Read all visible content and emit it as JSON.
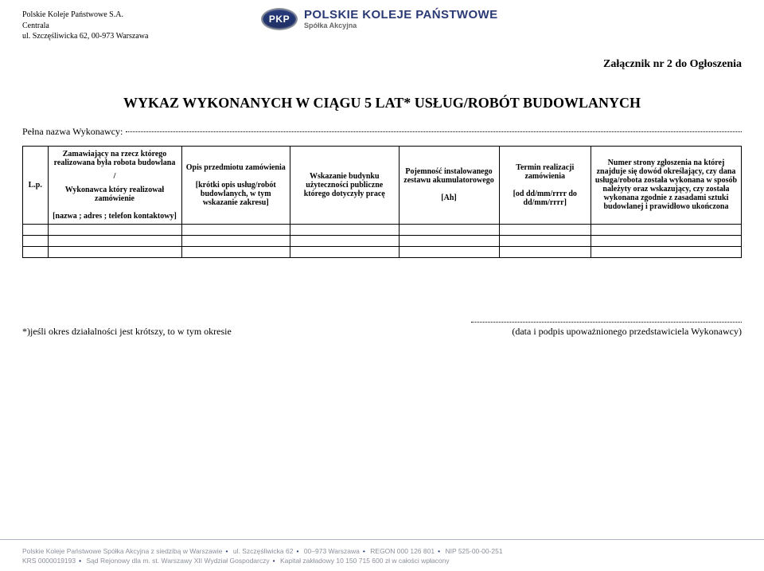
{
  "header": {
    "company_line1": "Polskie Koleje Państwowe S.A.",
    "company_line2": "Centrala",
    "company_line3": "ul. Szczęśliwicka 62, 00-973 Warszawa",
    "logo_abbr": "PKP",
    "logo_name": "POLSKIE KOLEJE PAŃSTWOWE",
    "logo_sub": "Spółka Akcyjna",
    "attachment": "Załącznik nr 2 do Ogłoszenia"
  },
  "title": "WYKAZ WYKONANYCH W CIĄGU 5 LAT* USŁUG/ROBÓT BUDOWLANYCH",
  "contractor_label": "Pełna nazwa Wykonawcy:",
  "columns": {
    "c0": "L.p.",
    "c1_a": "Zamawiający na rzecz którego realizowana była robota budowlana",
    "c1_sep": "/",
    "c1_b": "Wykonawca który realizował zamówienie",
    "c1_c": "[nazwa ; adres ; telefon kontaktowy]",
    "c2_a": "Opis przedmiotu zamówienia",
    "c2_b": "[krótki opis usług/robót budowlanych, w tym wskazanie zakresu]",
    "c3": "Wskazanie budynku użyteczności publiczne którego dotyczyły pracę",
    "c4_a": "Pojemność instalowanego zestawu akumulatorowego",
    "c4_b": "[Ah]",
    "c5_a": "Termin realizacji zamówienia",
    "c5_b": "[od dd/mm/rrrr do dd/mm/rrrr]",
    "c6": "Numer strony zgłoszenia na której znajduje się dowód określający, czy dana usługa/robota została wykonana w sposób należyty oraz wskazujący, czy została wykonana zgodnie z zasadami sztuki budowlanej i prawidłowo ukończona"
  },
  "col_widths": [
    "30px",
    "160px",
    "130px",
    "130px",
    "120px",
    "110px",
    "180px"
  ],
  "empty_rows": 3,
  "footnote": "*)jeśli okres działalności jest krótszy, to w tym okresie",
  "signature_caption": "(data i podpis upoważnionego przedstawiciela Wykonawcy)",
  "footer": {
    "l1a": "Polskie Koleje Państwowe Spółka Akcyjna z siedzibą w Warszawie",
    "l1b": "ul. Szczęśliwicka 62",
    "l1c": "00–973 Warszawa",
    "l1d": "REGON 000 126 801",
    "l1e": "NIP 525-00-00-251",
    "l2a": "KRS 0000019193",
    "l2b": "Sąd Rejonowy dla m. st. Warszawy XII Wydział Gospodarczy",
    "l2c": "Kapitał zakładowy 10 150 715 600 zł w całości wpłacony"
  },
  "colors": {
    "brand_navy": "#2a3a75",
    "footer_grey": "#8a8f9a",
    "rule_grey": "#b0b7c4"
  }
}
